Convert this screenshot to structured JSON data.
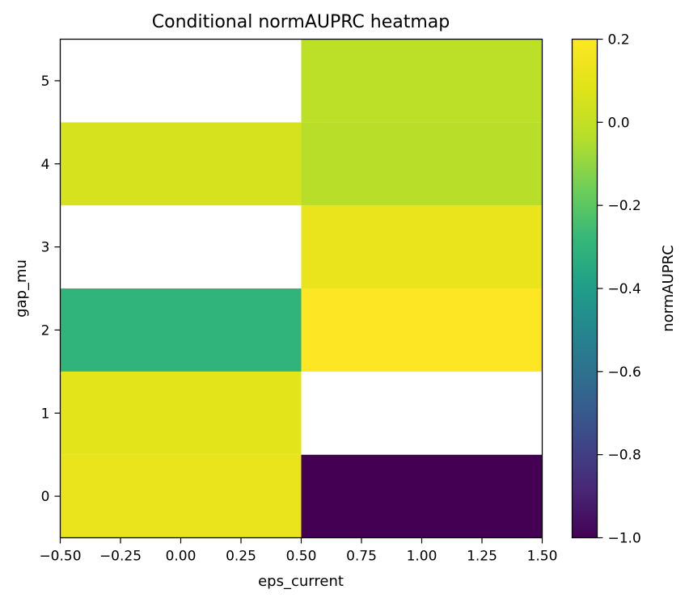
{
  "chart_data": {
    "type": "heatmap",
    "title": "Conditional normAUPRC heatmap",
    "xlabel": "eps_current",
    "ylabel": "gap_mu",
    "x_categories": [
      0,
      1
    ],
    "y_categories": [
      0,
      1,
      2,
      3,
      4,
      5
    ],
    "xlim": [
      -0.5,
      1.5
    ],
    "ylim": [
      -0.5,
      5.5
    ],
    "x_ticks": [
      "−0.50",
      "−0.25",
      "0.00",
      "0.25",
      "0.50",
      "0.75",
      "1.00",
      "1.25",
      "1.50"
    ],
    "y_ticks": [
      "0",
      "1",
      "2",
      "3",
      "4",
      "5"
    ],
    "cells": [
      {
        "x": 0,
        "y": 0,
        "value": 0.12
      },
      {
        "x": 0,
        "y": 1,
        "value": 0.1
      },
      {
        "x": 0,
        "y": 2,
        "value": -0.3
      },
      {
        "x": 0,
        "y": 3,
        "value": null
      },
      {
        "x": 0,
        "y": 4,
        "value": 0.05
      },
      {
        "x": 0,
        "y": 5,
        "value": null
      },
      {
        "x": 1,
        "y": 0,
        "value": -1.0
      },
      {
        "x": 1,
        "y": 1,
        "value": null
      },
      {
        "x": 1,
        "y": 2,
        "value": 0.2
      },
      {
        "x": 1,
        "y": 3,
        "value": 0.12
      },
      {
        "x": 1,
        "y": 4,
        "value": -0.03
      },
      {
        "x": 1,
        "y": 5,
        "value": -0.02
      }
    ],
    "colorbar": {
      "label": "normAUPRC",
      "vmin": -1.0,
      "vmax": 0.2,
      "ticks": [
        0.2,
        0.0,
        -0.2,
        -0.4,
        -0.6,
        -0.8,
        -1.0
      ],
      "tick_labels": [
        "0.2",
        "0.0",
        "−0.2",
        "−0.4",
        "−0.6",
        "−0.8",
        "−1.0"
      ],
      "colormap": "viridis"
    },
    "missing_color": "#ffffff",
    "grid": false
  }
}
